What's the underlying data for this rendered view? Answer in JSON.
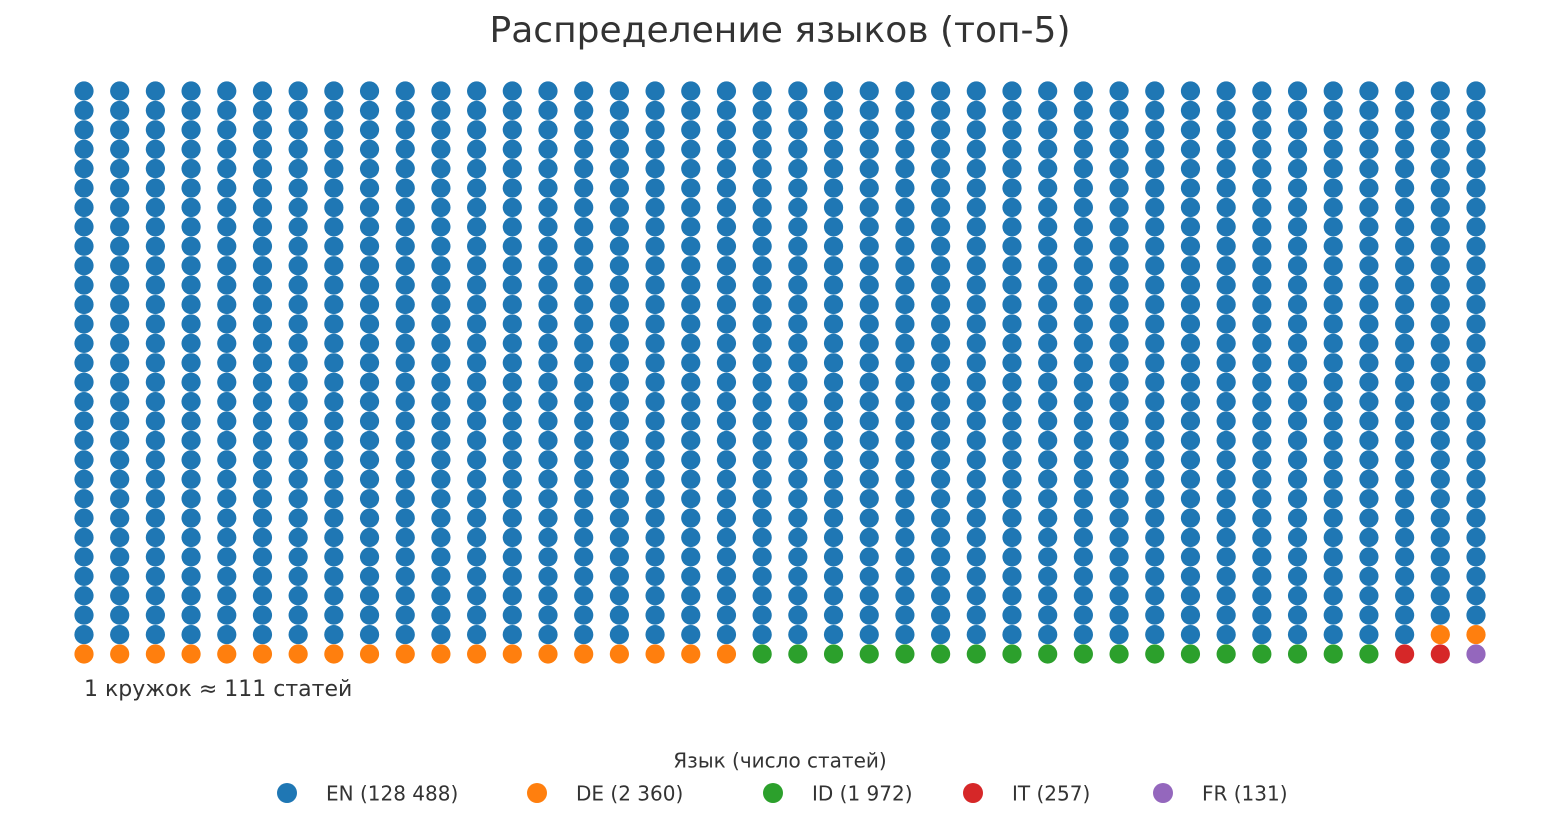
{
  "chart_data": {
    "type": "waffle",
    "title": "Распределение языков (топ-5)",
    "annotation": "1 кружок ≈ 111 статей",
    "per_circle": 111,
    "legend_title": "Язык (число статей)",
    "series": [
      {
        "name": "EN (128 488)",
        "value": 128488,
        "color": "#1f77b4"
      },
      {
        "name": "DE (2 360)",
        "value": 2360,
        "color": "#ff7f0e"
      },
      {
        "name": "ID (1 972)",
        "value": 1972,
        "color": "#2ca02c"
      },
      {
        "name": "IT (257)",
        "value": 257,
        "color": "#d62728"
      },
      {
        "name": "FR (131)",
        "value": 131,
        "color": "#9467bd"
      }
    ]
  }
}
